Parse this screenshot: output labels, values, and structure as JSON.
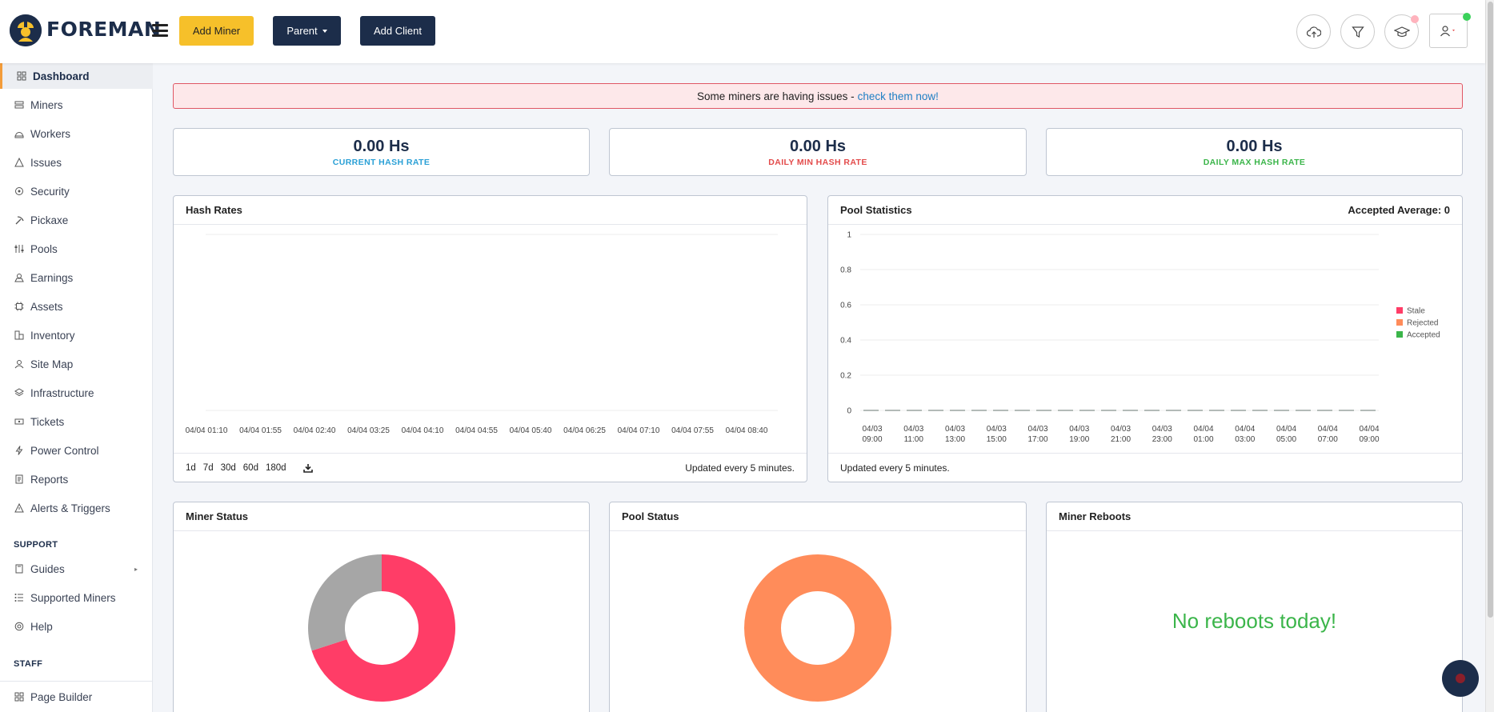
{
  "header": {
    "brand": "FOREMAN",
    "add_miner_label": "Add Miner",
    "parent_label": "Parent",
    "add_client_label": "Add Client"
  },
  "sidebar": {
    "items": [
      {
        "label": "Dashboard",
        "icon": "dashboard-icon"
      },
      {
        "label": "Miners",
        "icon": "miners-icon"
      },
      {
        "label": "Workers",
        "icon": "workers-icon"
      },
      {
        "label": "Issues",
        "icon": "warning-icon"
      },
      {
        "label": "Security",
        "icon": "shield-icon"
      },
      {
        "label": "Pickaxe",
        "icon": "pickaxe-icon"
      },
      {
        "label": "Pools",
        "icon": "pools-icon"
      },
      {
        "label": "Earnings",
        "icon": "earnings-icon"
      },
      {
        "label": "Assets",
        "icon": "assets-icon"
      },
      {
        "label": "Inventory",
        "icon": "inventory-icon"
      },
      {
        "label": "Site Map",
        "icon": "site-map-icon"
      },
      {
        "label": "Infrastructure",
        "icon": "layers-icon"
      },
      {
        "label": "Tickets",
        "icon": "ticket-icon"
      },
      {
        "label": "Power Control",
        "icon": "power-icon"
      },
      {
        "label": "Reports",
        "icon": "reports-icon"
      },
      {
        "label": "Alerts & Triggers",
        "icon": "alert-icon"
      }
    ],
    "support_label": "SUPPORT",
    "support_items": [
      {
        "label": "Guides",
        "icon": "book-icon"
      },
      {
        "label": "Supported Miners",
        "icon": "list-icon"
      },
      {
        "label": "Help",
        "icon": "help-icon"
      }
    ],
    "staff_label": "STAFF",
    "staff_items": [
      {
        "label": "Page Builder",
        "icon": "grid-icon"
      }
    ]
  },
  "alert": {
    "text": "Some miners are having issues -",
    "link": "check them now!"
  },
  "stats": [
    {
      "value": "0.00 Hs",
      "label": "CURRENT HASH RATE",
      "color": "#2aa0d6"
    },
    {
      "value": "0.00 Hs",
      "label": "DAILY MIN HASH RATE",
      "color": "#e34b4b"
    },
    {
      "value": "0.00 Hs",
      "label": "DAILY MAX HASH RATE",
      "color": "#3bb54a"
    }
  ],
  "hash_rates": {
    "title": "Hash Rates",
    "ranges": [
      "1d",
      "7d",
      "30d",
      "60d",
      "180d"
    ],
    "updated": "Updated every 5 minutes."
  },
  "pool_stats": {
    "title": "Pool Statistics",
    "accepted_average": "Accepted Average: 0",
    "updated": "Updated every 5 minutes."
  },
  "miner_status": {
    "title": "Miner Status"
  },
  "pool_status": {
    "title": "Pool Status"
  },
  "miner_reboots": {
    "title": "Miner Reboots",
    "message": "No reboots today!"
  },
  "colors": {
    "brand": "#1c2d4a",
    "accent": "#f6c02a",
    "stale": "#ff3d67",
    "rejected": "#ff8c5a",
    "accepted": "#3bb54a"
  },
  "chart_data": [
    {
      "type": "line",
      "title": "Hash Rates",
      "x": [
        "04/04 01:10",
        "04/04 01:55",
        "04/04 02:40",
        "04/04 03:25",
        "04/04 04:10",
        "04/04 04:55",
        "04/04 05:40",
        "04/04 06:25",
        "04/04 07:10",
        "04/04 07:55",
        "04/04 08:40"
      ],
      "series": [],
      "grid": true
    },
    {
      "type": "bar",
      "title": "Pool Statistics",
      "categories": [
        "04/03 09:00",
        "04/03 11:00",
        "04/03 13:00",
        "04/03 15:00",
        "04/03 17:00",
        "04/03 19:00",
        "04/03 21:00",
        "04/03 23:00",
        "04/04 01:00",
        "04/04 03:00",
        "04/04 05:00",
        "04/04 07:00",
        "04/04 09:00"
      ],
      "series": [
        {
          "name": "Stale",
          "color": "#ff3d67",
          "values": [
            0,
            0,
            0,
            0,
            0,
            0,
            0,
            0,
            0,
            0,
            0,
            0,
            0
          ]
        },
        {
          "name": "Rejected",
          "color": "#ff8c5a",
          "values": [
            0,
            0,
            0,
            0,
            0,
            0,
            0,
            0,
            0,
            0,
            0,
            0,
            0
          ]
        },
        {
          "name": "Accepted",
          "color": "#3bb54a",
          "values": [
            0,
            0,
            0,
            0,
            0,
            0,
            0,
            0,
            0,
            0,
            0,
            0,
            0
          ]
        }
      ],
      "yticks": [
        "1",
        "0.8",
        "0.6",
        "0.4",
        "0.2",
        "0"
      ],
      "ylim": [
        0,
        1
      ],
      "legend": "right",
      "grid": true
    },
    {
      "type": "pie",
      "title": "Miner Status",
      "values": [
        0.7,
        0.3
      ],
      "colors": [
        "#ff3d67",
        "#a6a6a6"
      ]
    },
    {
      "type": "pie",
      "title": "Pool Status",
      "values": [
        1
      ],
      "colors": [
        "#ff8c5a"
      ]
    }
  ]
}
